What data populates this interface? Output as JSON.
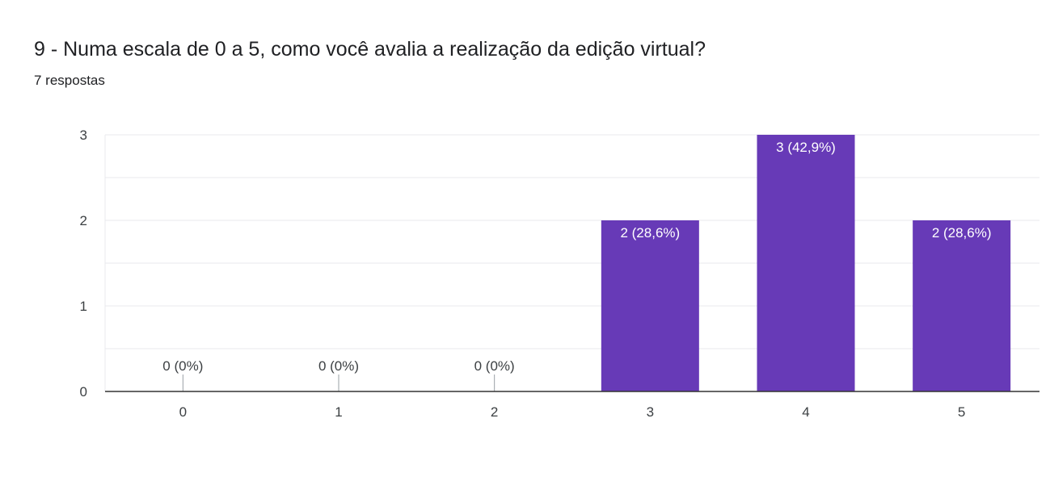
{
  "header": {
    "title": "9 - Numa escala de 0 a 5, como você avalia a realização da edição virtual?",
    "subtitle": "7 respostas"
  },
  "colors": {
    "bar": "#673ab7",
    "grid": "#e8eaed",
    "axis": "#333333",
    "label_inside": "#ffffff",
    "label_outside": "#3c4043"
  },
  "chart_data": {
    "type": "bar",
    "categories": [
      "0",
      "1",
      "2",
      "3",
      "4",
      "5"
    ],
    "values": [
      0,
      0,
      0,
      2,
      3,
      2
    ],
    "data_labels": [
      "0 (0%)",
      "0 (0%)",
      "0 (0%)",
      "2 (28,6%)",
      "3 (42,9%)",
      "2 (28,6%)"
    ],
    "ylim": [
      0,
      3
    ],
    "yticks": [
      "0",
      "1",
      "2",
      "3"
    ],
    "grid": true,
    "legend": "none"
  }
}
